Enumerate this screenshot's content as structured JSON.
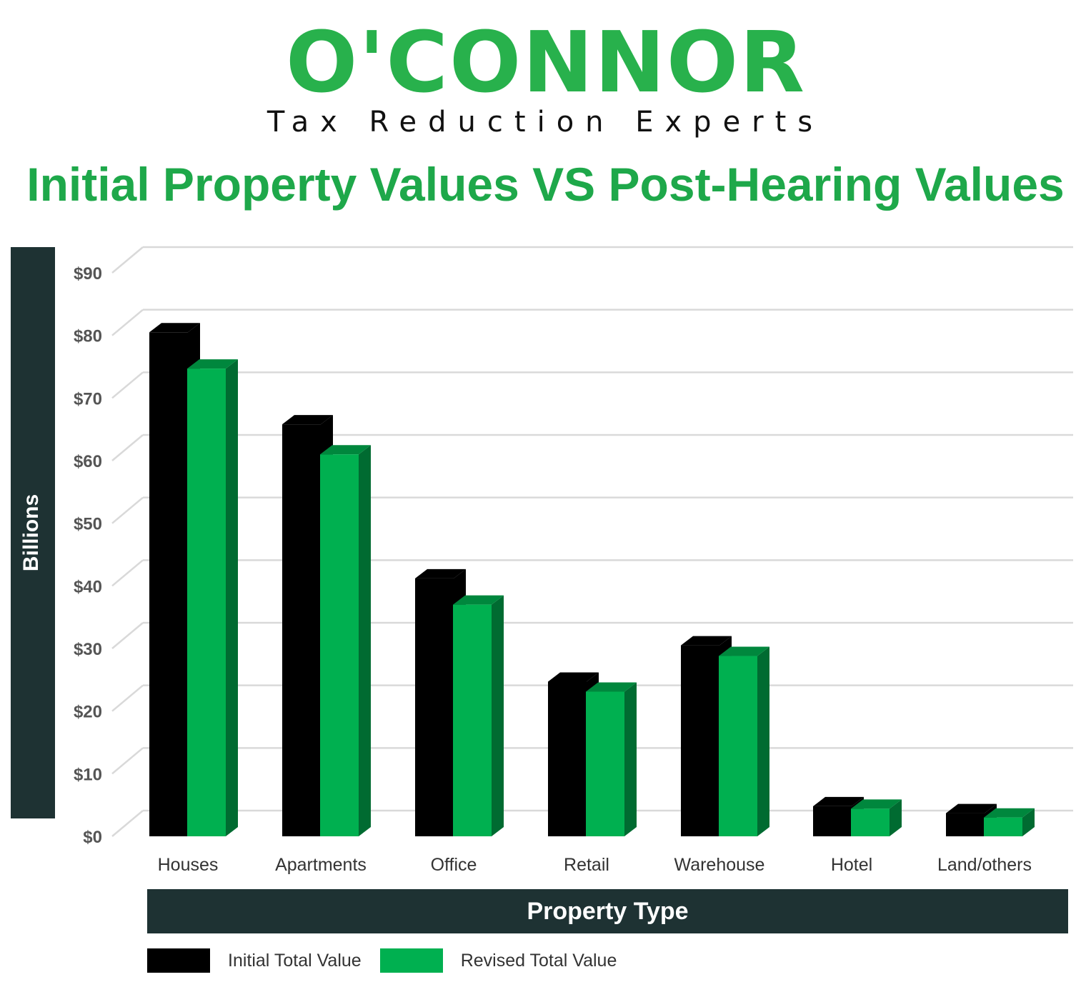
{
  "brand": {
    "name": "O'CONNOR",
    "tagline": "Tax Reduction Experts",
    "color": "#28b14c"
  },
  "chart_data": {
    "type": "bar",
    "title": "Initial Property Values VS Post-Hearing Values",
    "xlabel": "Property Type",
    "ylabel": "Billions",
    "categories": [
      "Houses",
      "Apartments",
      "Office",
      "Retail",
      "Warehouse",
      "Hotel",
      "Land/others"
    ],
    "series": [
      {
        "name": "Initial Total Value",
        "values": [
          80.5,
          65.8,
          41.2,
          24.7,
          30.5,
          4.8,
          3.7
        ],
        "color": "#000000"
      },
      {
        "name": "Revised Total Value",
        "values": [
          74.7,
          61.0,
          37.0,
          23.1,
          28.8,
          4.4,
          3.0
        ],
        "color": "#00b050"
      }
    ],
    "ylim": [
      0,
      90
    ],
    "ytick_values": [
      0,
      10,
      20,
      30,
      40,
      50,
      60,
      70,
      80,
      90
    ],
    "ytick_labels": [
      "$0",
      "$10",
      "$20",
      "$30",
      "$40",
      "$50",
      "$60",
      "$70",
      "$80",
      "$90"
    ],
    "grid": true,
    "legend": "bottom-left",
    "style": "3d-bars"
  }
}
